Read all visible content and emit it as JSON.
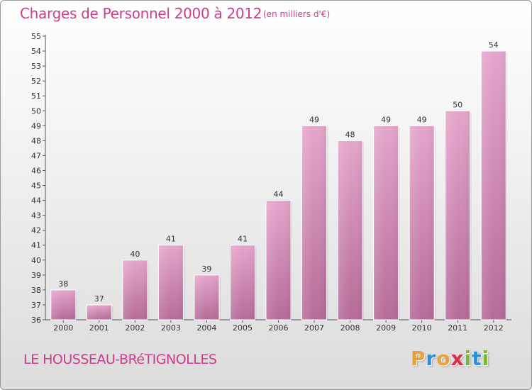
{
  "chart_data": {
    "type": "bar",
    "title": "Charges de Personnel 2000 à 2012",
    "subtitle": "(en milliers d'€)",
    "categories": [
      "2000",
      "2001",
      "2002",
      "2003",
      "2004",
      "2005",
      "2006",
      "2007",
      "2008",
      "2009",
      "2010",
      "2011",
      "2012"
    ],
    "values": [
      38,
      37,
      40,
      41,
      39,
      41,
      44,
      49,
      48,
      49,
      49,
      50,
      54
    ],
    "ylim": [
      36,
      55
    ],
    "yticks": [
      36,
      37,
      38,
      39,
      40,
      41,
      42,
      43,
      44,
      45,
      46,
      47,
      48,
      49,
      50,
      51,
      52,
      53,
      54,
      55
    ],
    "grid": false,
    "legend": "none",
    "bar_color": "#d98fb8"
  },
  "location": "LE HOUSSEAU-BRéTIGNOLLES",
  "logo": {
    "letters": [
      {
        "char": "P",
        "color": "#e9a23b"
      },
      {
        "char": "r",
        "color": "#2f8fd2"
      },
      {
        "char": "o",
        "color": "#e9a23b"
      },
      {
        "char": "x",
        "color": "#d9304a"
      },
      {
        "char": "i",
        "color": "#7ab83a"
      },
      {
        "char": "t",
        "color": "#2f8fd2"
      },
      {
        "char": "i",
        "color": "#7ab83a"
      }
    ]
  }
}
